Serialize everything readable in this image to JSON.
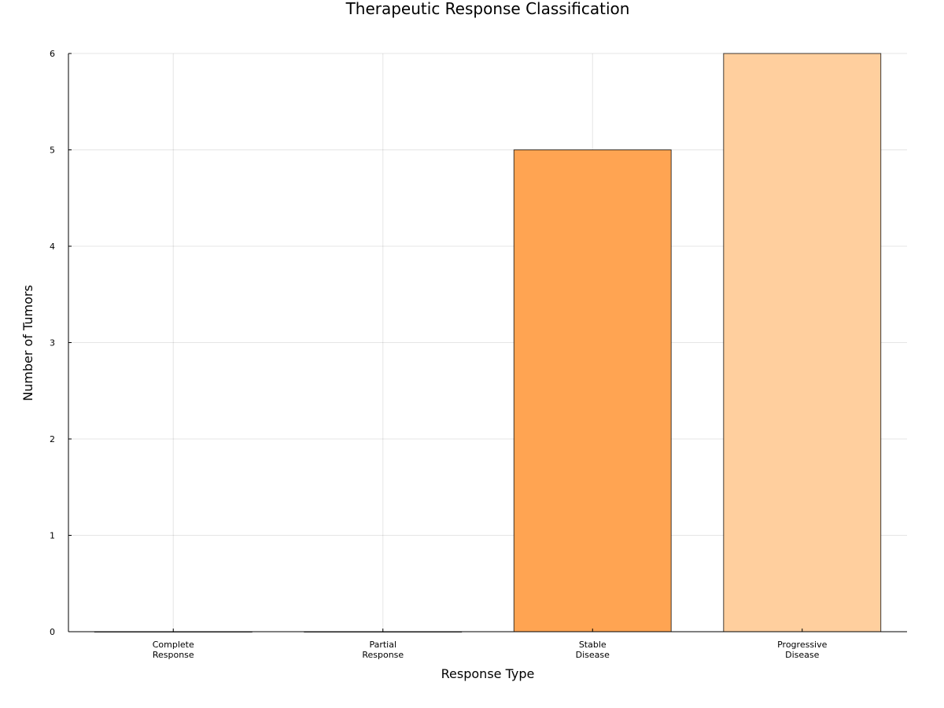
{
  "chart_data": {
    "type": "bar",
    "title": "Therapeutic Response Classification",
    "xlabel": "Response Type",
    "ylabel": "Number of Tumors",
    "categories": [
      [
        "Complete",
        "Response"
      ],
      [
        "Partial",
        "Response"
      ],
      [
        "Stable",
        "Disease"
      ],
      [
        "Progressive",
        "Disease"
      ]
    ],
    "values": [
      0,
      0,
      5,
      6
    ],
    "colors": [
      "#c8661f",
      "#e0812f",
      "#ffa452",
      "#ffcf9e"
    ],
    "ylim": [
      0,
      6
    ],
    "yticks": [
      0,
      1,
      2,
      3,
      4,
      5,
      6
    ],
    "grid": true,
    "legend": false
  }
}
